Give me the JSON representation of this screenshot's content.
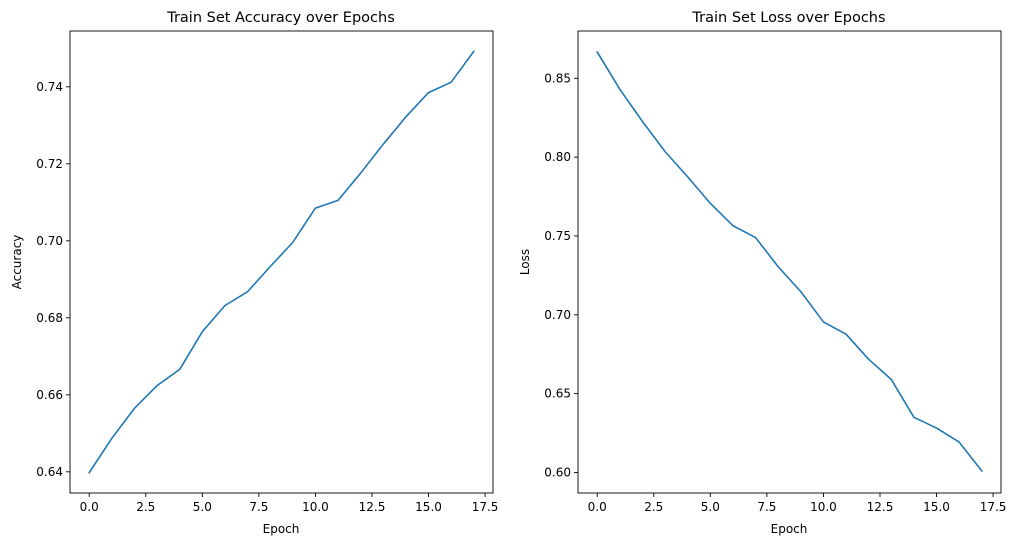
{
  "chart_data": [
    {
      "type": "line",
      "title": "Train Set Accuracy over Epochs",
      "xlabel": "Epoch",
      "ylabel": "Accuracy",
      "xlim": [
        -0.85,
        17.85
      ],
      "ylim": [
        0.6345,
        0.7545
      ],
      "xticks": [
        0,
        2.5,
        5,
        7.5,
        10,
        12.5,
        15,
        17.5
      ],
      "xtick_labels": [
        "0.0",
        "2.5",
        "5.0",
        "7.5",
        "10.0",
        "12.5",
        "15.0",
        "17.5"
      ],
      "yticks": [
        0.64,
        0.66,
        0.68,
        0.7,
        0.72,
        0.74
      ],
      "ytick_labels": [
        "0.64",
        "0.66",
        "0.68",
        "0.70",
        "0.72",
        "0.74"
      ],
      "grid": false,
      "color": "#1f77b4",
      "x": [
        0,
        1,
        2,
        3,
        4,
        5,
        6,
        7,
        8,
        9,
        10,
        11,
        12,
        13,
        14,
        15,
        16,
        17
      ],
      "y": [
        0.6398,
        0.6487,
        0.6565,
        0.6624,
        0.6666,
        0.6764,
        0.6832,
        0.6868,
        0.6933,
        0.6996,
        0.7085,
        0.7105,
        0.7176,
        0.7251,
        0.7322,
        0.7385,
        0.7412,
        0.7492
      ]
    },
    {
      "type": "line",
      "title": "Train Set Loss over Epochs",
      "xlabel": "Epoch",
      "ylabel": "Loss",
      "xlim": [
        -0.85,
        17.85
      ],
      "ylim": [
        0.587,
        0.88
      ],
      "xticks": [
        0,
        2.5,
        5,
        7.5,
        10,
        12.5,
        15,
        17.5
      ],
      "xtick_labels": [
        "0.0",
        "2.5",
        "5.0",
        "7.5",
        "10.0",
        "12.5",
        "15.0",
        "17.5"
      ],
      "yticks": [
        0.6,
        0.65,
        0.7,
        0.75,
        0.8,
        0.85
      ],
      "ytick_labels": [
        "0.60",
        "0.65",
        "0.70",
        "0.75",
        "0.80",
        "0.85"
      ],
      "grid": false,
      "color": "#1f77b4",
      "x": [
        0,
        1,
        2,
        3,
        4,
        5,
        6,
        7,
        8,
        9,
        10,
        11,
        12,
        13,
        14,
        15,
        16,
        17
      ],
      "y": [
        0.8667,
        0.843,
        0.8226,
        0.8035,
        0.7875,
        0.7707,
        0.7565,
        0.749,
        0.7305,
        0.7147,
        0.6955,
        0.6877,
        0.6718,
        0.659,
        0.635,
        0.6282,
        0.6193,
        0.601
      ]
    }
  ]
}
